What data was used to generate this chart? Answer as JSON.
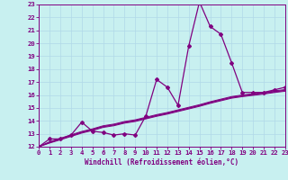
{
  "xlabel": "Windchill (Refroidissement éolien,°C)",
  "bg_color": "#c8f0f0",
  "grid_color": "#b0d8e8",
  "line_color": "#800080",
  "xlim": [
    0,
    23
  ],
  "ylim": [
    12,
    23
  ],
  "x_ticks": [
    0,
    1,
    2,
    3,
    4,
    5,
    6,
    7,
    8,
    9,
    10,
    11,
    12,
    13,
    14,
    15,
    16,
    17,
    18,
    19,
    20,
    21,
    22,
    23
  ],
  "y_ticks": [
    12,
    13,
    14,
    15,
    16,
    17,
    18,
    19,
    20,
    21,
    22,
    23
  ],
  "main_line_x": [
    0,
    1,
    2,
    3,
    4,
    5,
    6,
    7,
    8,
    9,
    10,
    11,
    12,
    13,
    14,
    15,
    16,
    17,
    18,
    19,
    20,
    21,
    22,
    23
  ],
  "main_line_y": [
    12.0,
    12.6,
    12.6,
    12.9,
    13.9,
    13.2,
    13.1,
    12.9,
    13.0,
    12.9,
    14.4,
    17.2,
    16.6,
    15.2,
    19.8,
    23.2,
    21.3,
    20.7,
    18.5,
    16.2,
    16.2,
    16.2,
    16.4,
    16.6
  ],
  "ref_line_x": [
    0,
    1,
    2,
    3,
    4,
    5,
    6,
    7,
    8,
    9,
    10,
    11,
    12,
    13,
    14,
    15,
    16,
    17,
    18,
    19,
    20,
    21,
    22,
    23
  ],
  "ref_line_y1": [
    12.0,
    12.38,
    12.65,
    12.92,
    13.18,
    13.38,
    13.62,
    13.75,
    13.95,
    14.08,
    14.28,
    14.48,
    14.65,
    14.85,
    15.05,
    15.25,
    15.48,
    15.68,
    15.88,
    16.0,
    16.1,
    16.2,
    16.32,
    16.42
  ],
  "ref_line_y2": [
    12.0,
    12.32,
    12.58,
    12.84,
    13.1,
    13.3,
    13.54,
    13.67,
    13.87,
    14.0,
    14.2,
    14.4,
    14.57,
    14.77,
    14.97,
    15.17,
    15.4,
    15.6,
    15.8,
    15.92,
    16.02,
    16.12,
    16.24,
    16.34
  ],
  "ref_line_y3": [
    12.0,
    12.35,
    12.61,
    12.87,
    13.13,
    13.33,
    13.57,
    13.7,
    13.9,
    14.03,
    14.23,
    14.43,
    14.6,
    14.8,
    15.0,
    15.2,
    15.43,
    15.63,
    15.83,
    15.95,
    16.05,
    16.15,
    16.27,
    16.37
  ],
  "ref_line_y4": [
    12.0,
    12.28,
    12.53,
    12.79,
    13.05,
    13.25,
    13.49,
    13.62,
    13.82,
    13.95,
    14.15,
    14.35,
    14.52,
    14.72,
    14.92,
    15.12,
    15.35,
    15.55,
    15.75,
    15.87,
    15.97,
    16.07,
    16.19,
    16.29
  ]
}
